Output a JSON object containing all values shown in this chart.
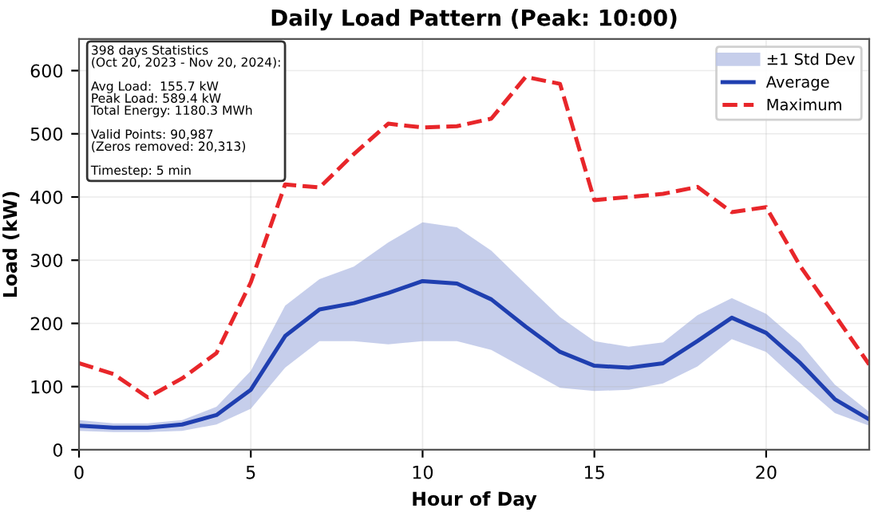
{
  "chart_data": {
    "type": "line",
    "title": "Daily Load Pattern (Peak: 10:00)",
    "xlabel": "Hour of Day",
    "ylabel": "Load (kW)",
    "x": [
      0,
      1,
      2,
      3,
      4,
      5,
      6,
      7,
      8,
      9,
      10,
      11,
      12,
      13,
      14,
      15,
      16,
      17,
      18,
      19,
      20,
      21,
      22,
      23
    ],
    "series": [
      {
        "name": "Average",
        "color": "#1f3fb0",
        "line_style": "solid",
        "values": [
          38,
          35,
          35,
          40,
          55,
          95,
          180,
          222,
          232,
          248,
          267,
          263,
          238,
          195,
          155,
          133,
          130,
          137,
          172,
          209,
          185,
          137,
          80,
          48
        ],
        "lower": [
          30,
          28,
          28,
          30,
          40,
          65,
          130,
          172,
          172,
          167,
          172,
          172,
          158,
          128,
          98,
          93,
          95,
          105,
          132,
          175,
          155,
          105,
          58,
          38
        ],
        "upper": [
          47,
          42,
          42,
          47,
          68,
          125,
          228,
          270,
          290,
          328,
          360,
          352,
          315,
          262,
          210,
          172,
          163,
          170,
          213,
          240,
          215,
          168,
          103,
          60
        ]
      },
      {
        "name": "Maximum",
        "color": "#e8262a",
        "line_style": "dashed",
        "values": [
          137,
          120,
          83,
          113,
          153,
          265,
          420,
          415,
          468,
          516,
          510,
          512,
          524,
          590,
          579,
          395,
          400,
          405,
          416,
          376,
          384,
          290,
          213,
          135
        ]
      }
    ],
    "xlim": [
      0,
      23
    ],
    "xticks": [
      0,
      5,
      10,
      15,
      20
    ],
    "ylim": [
      0,
      650
    ],
    "yticks": [
      0,
      100,
      200,
      300,
      400,
      500,
      600
    ],
    "annotations": [
      "398 days Statistics\n(Oct 20, 2023 - Nov 20, 2024):\n\nAvg Load:  155.7 kW\nPeak Load: 589.4 kW\nTotal Energy: 1180.3 MWh\n\nValid Points: 90,987\n(Zeros removed: 20,313)\n\nTimestep: 5 min",
      "±1 Std Dev"
    ],
    "grid": true,
    "legend": "top right"
  }
}
